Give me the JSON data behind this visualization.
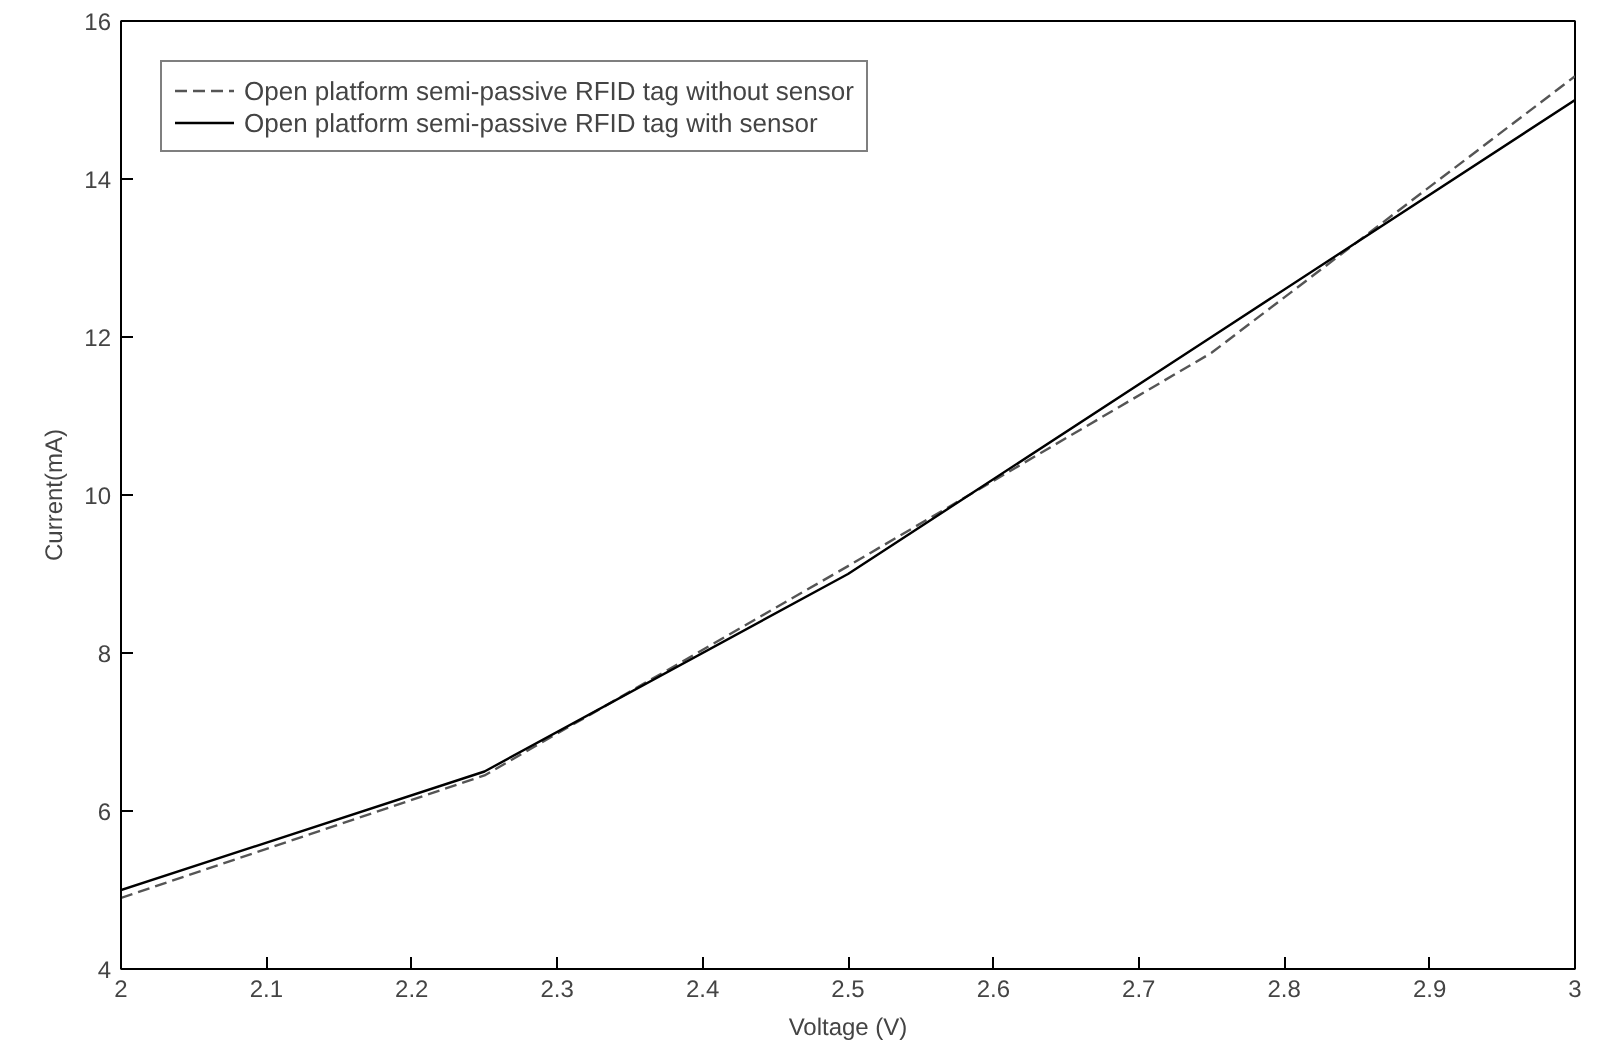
{
  "chart_data": {
    "type": "line",
    "xlabel": "Voltage (V)",
    "ylabel": "Current(mA)",
    "x": [
      2,
      2.25,
      2.5,
      2.75,
      3
    ],
    "series": [
      {
        "name": "Open platform semi-passive RFID tag without sensor",
        "color": "#555555",
        "line_style": "dashed",
        "values": [
          4.9,
          6.45,
          9.1,
          11.8,
          15.3
        ]
      },
      {
        "name": "Open platform semi-passive RFID tag with sensor",
        "color": "#000000",
        "line_style": "solid",
        "values": [
          5.0,
          6.5,
          9.0,
          12.0,
          15.0
        ]
      }
    ],
    "xlim": [
      2,
      3
    ],
    "ylim": [
      4,
      16
    ],
    "xticks": [
      2,
      2.1,
      2.2,
      2.3,
      2.4,
      2.5,
      2.6,
      2.7,
      2.8,
      2.9,
      3
    ],
    "yticks": [
      4,
      6,
      8,
      10,
      12,
      14,
      16
    ],
    "grid": false,
    "legend": "top left"
  }
}
